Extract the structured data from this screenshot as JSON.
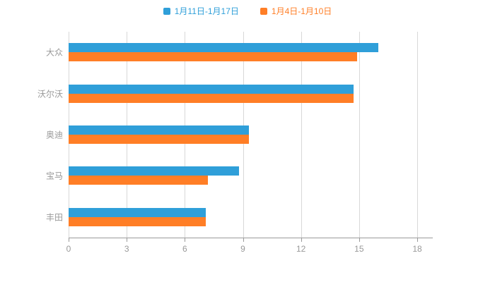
{
  "chart_data": {
    "type": "bar",
    "orientation": "horizontal",
    "title": "",
    "categories": [
      "大众",
      "沃尔沃",
      "奥迪",
      "宝马",
      "丰田"
    ],
    "series": [
      {
        "name": "1月11日-1月17日",
        "color": "#2F9FD9",
        "values": [
          16.0,
          14.7,
          9.3,
          8.8,
          7.1
        ]
      },
      {
        "name": "1月4日-1月10日",
        "color": "#FF7E26",
        "values": [
          14.9,
          14.7,
          9.3,
          7.2,
          7.1
        ]
      }
    ],
    "x_axis": {
      "min": 0,
      "max": 18,
      "ticks": [
        0,
        3,
        6,
        9,
        12,
        15,
        18
      ]
    },
    "y_axis_label": "",
    "legend_position": "top",
    "grid": true
  },
  "colors": {
    "background": "#ffffff",
    "grid_line": "#d8d8d8",
    "axis_line": "#9a9a9a",
    "axis_label": "#999999"
  }
}
